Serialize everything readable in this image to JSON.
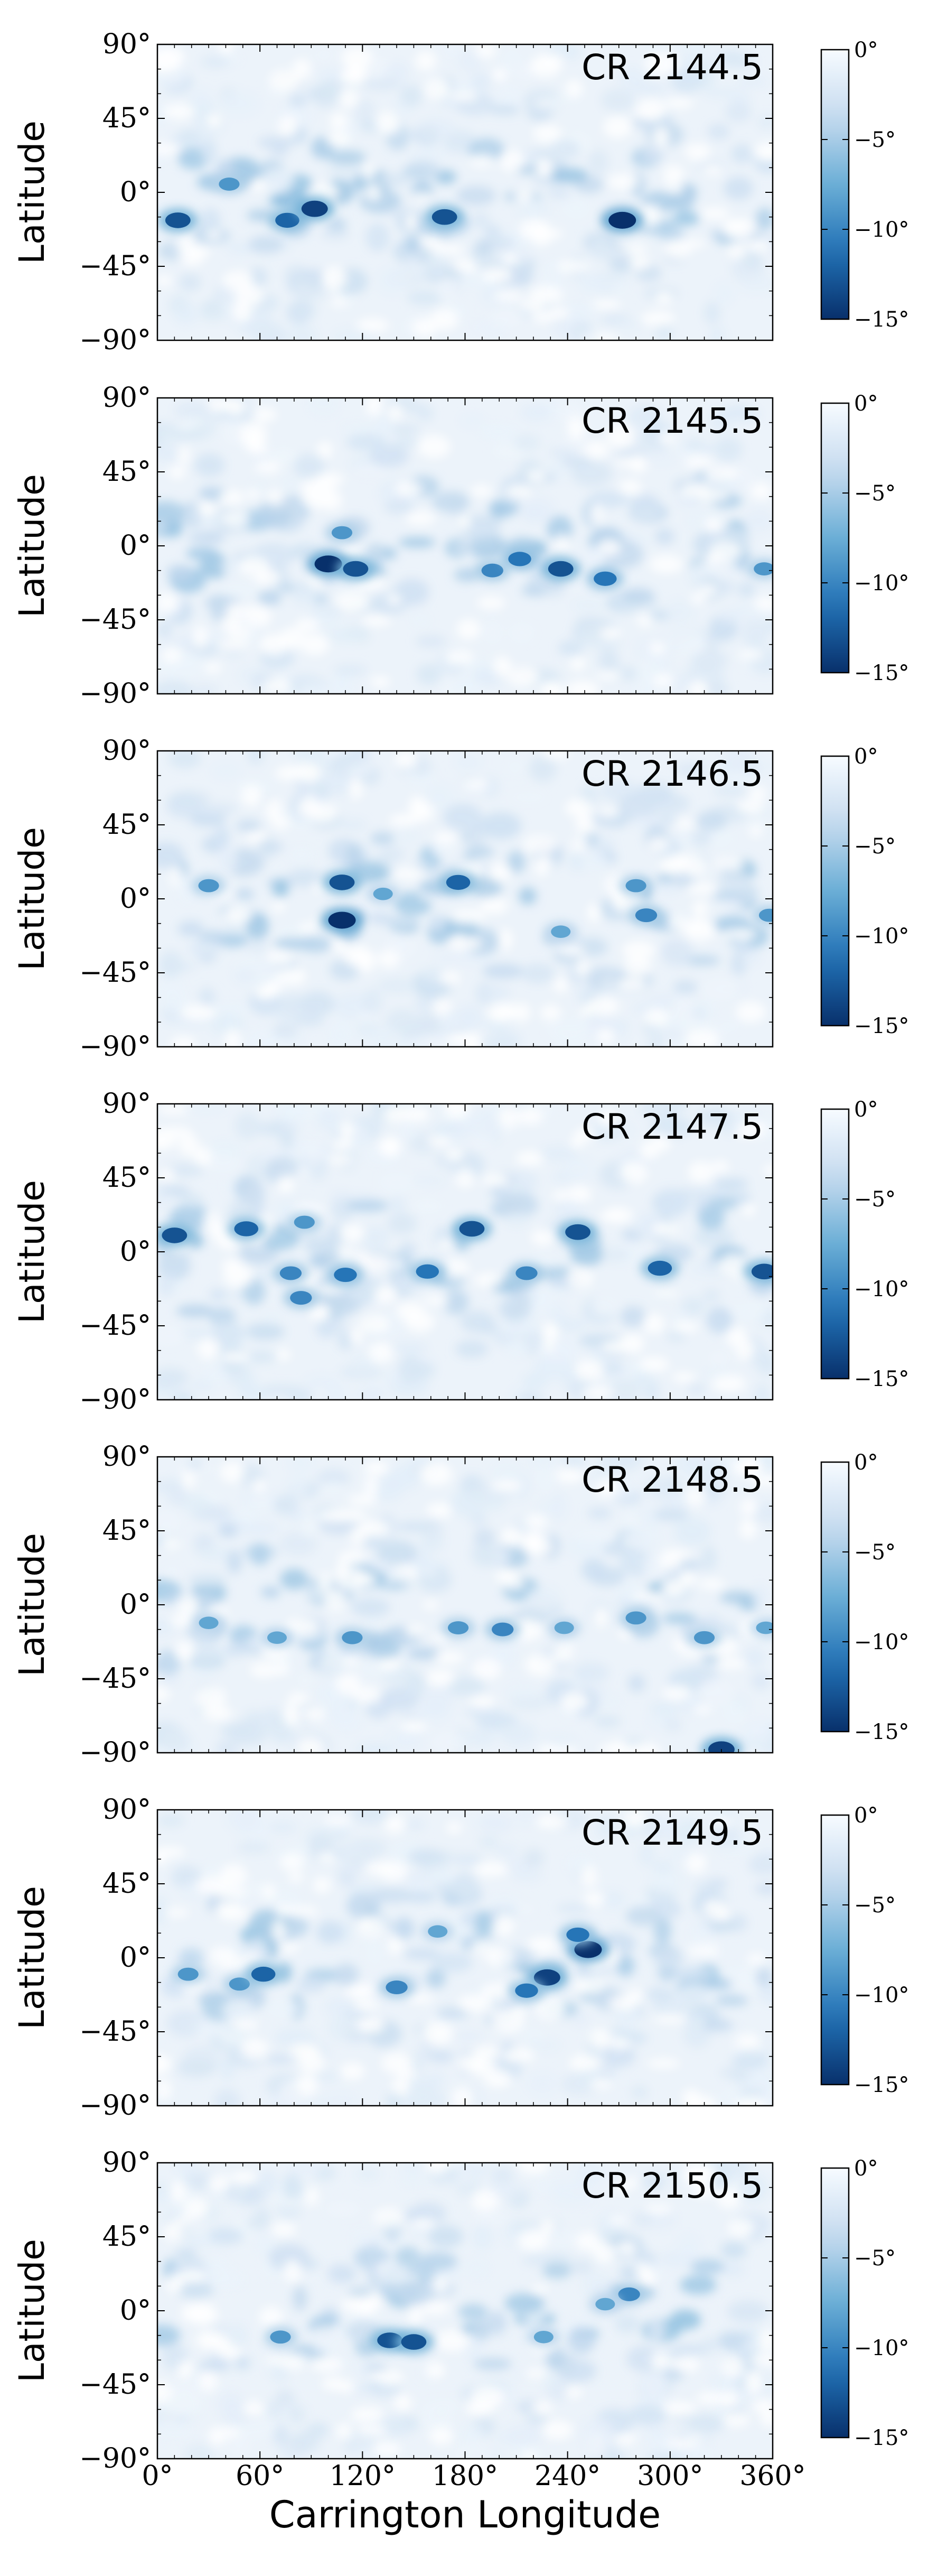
{
  "chart_data": [
    {
      "type": "heatmap",
      "label": "CR 2144.5",
      "ylabel": "Latitude",
      "xlabel": "",
      "xlim": [
        0,
        360
      ],
      "ylim": [
        -90,
        90
      ],
      "x_ticks": [
        0,
        60,
        120,
        180,
        240,
        300,
        360
      ],
      "y_ticks": [
        "90°",
        "45°",
        "0°",
        "−45°",
        "−90°"
      ],
      "colorbar": {
        "range": [
          -15,
          0
        ],
        "ticks": [
          "0°",
          "−5°",
          "−10°",
          "−15°"
        ]
      },
      "features": [
        {
          "lon": 12,
          "lat": -17,
          "value": -13
        },
        {
          "lon": 42,
          "lat": 5,
          "value": -9
        },
        {
          "lon": 76,
          "lat": -17,
          "value": -12
        },
        {
          "lon": 92,
          "lat": -10,
          "value": -14
        },
        {
          "lon": 168,
          "lat": -15,
          "value": -13
        },
        {
          "lon": 272,
          "lat": -17,
          "value": -15
        }
      ]
    },
    {
      "type": "heatmap",
      "label": "CR 2145.5",
      "ylabel": "Latitude",
      "xlabel": "",
      "xlim": [
        0,
        360
      ],
      "ylim": [
        -90,
        90
      ],
      "x_ticks": [
        0,
        60,
        120,
        180,
        240,
        300,
        360
      ],
      "y_ticks": [
        "90°",
        "45°",
        "0°",
        "−45°",
        "−90°"
      ],
      "colorbar": {
        "range": [
          -15,
          0
        ],
        "ticks": [
          "0°",
          "−5°",
          "−10°",
          "−15°"
        ]
      },
      "features": [
        {
          "lon": 100,
          "lat": -11,
          "value": -15
        },
        {
          "lon": 116,
          "lat": -14,
          "value": -13
        },
        {
          "lon": 108,
          "lat": 8,
          "value": -9
        },
        {
          "lon": 196,
          "lat": -15,
          "value": -10
        },
        {
          "lon": 212,
          "lat": -8,
          "value": -11
        },
        {
          "lon": 236,
          "lat": -14,
          "value": -13
        },
        {
          "lon": 262,
          "lat": -20,
          "value": -11
        },
        {
          "lon": 355,
          "lat": -14,
          "value": -9
        }
      ]
    },
    {
      "type": "heatmap",
      "label": "CR 2146.5",
      "ylabel": "Latitude",
      "xlabel": "",
      "xlim": [
        0,
        360
      ],
      "ylim": [
        -90,
        90
      ],
      "x_ticks": [
        0,
        60,
        120,
        180,
        240,
        300,
        360
      ],
      "y_ticks": [
        "90°",
        "45°",
        "0°",
        "−45°",
        "−90°"
      ],
      "colorbar": {
        "range": [
          -15,
          0
        ],
        "ticks": [
          "0°",
          "−5°",
          "−10°",
          "−15°"
        ]
      },
      "features": [
        {
          "lon": 30,
          "lat": 8,
          "value": -9
        },
        {
          "lon": 108,
          "lat": 10,
          "value": -13
        },
        {
          "lon": 108,
          "lat": -13,
          "value": -15
        },
        {
          "lon": 132,
          "lat": 3,
          "value": -8
        },
        {
          "lon": 176,
          "lat": 10,
          "value": -12
        },
        {
          "lon": 236,
          "lat": -20,
          "value": -8
        },
        {
          "lon": 280,
          "lat": 8,
          "value": -9
        },
        {
          "lon": 286,
          "lat": -10,
          "value": -10
        },
        {
          "lon": 358,
          "lat": -10,
          "value": -9
        }
      ]
    },
    {
      "type": "heatmap",
      "label": "CR 2147.5",
      "ylabel": "Latitude",
      "xlabel": "",
      "xlim": [
        0,
        360
      ],
      "ylim": [
        -90,
        90
      ],
      "x_ticks": [
        0,
        60,
        120,
        180,
        240,
        300,
        360
      ],
      "y_ticks": [
        "90°",
        "45°",
        "0°",
        "−45°",
        "−90°"
      ],
      "colorbar": {
        "range": [
          -15,
          0
        ],
        "ticks": [
          "0°",
          "−5°",
          "−10°",
          "−15°"
        ]
      },
      "features": [
        {
          "lon": 10,
          "lat": 10,
          "value": -13
        },
        {
          "lon": 52,
          "lat": 14,
          "value": -12
        },
        {
          "lon": 86,
          "lat": 18,
          "value": -9
        },
        {
          "lon": 78,
          "lat": -13,
          "value": -10
        },
        {
          "lon": 84,
          "lat": -28,
          "value": -10
        },
        {
          "lon": 110,
          "lat": -14,
          "value": -11
        },
        {
          "lon": 158,
          "lat": -12,
          "value": -11
        },
        {
          "lon": 184,
          "lat": 14,
          "value": -13
        },
        {
          "lon": 216,
          "lat": -13,
          "value": -10
        },
        {
          "lon": 246,
          "lat": 12,
          "value": -13
        },
        {
          "lon": 294,
          "lat": -10,
          "value": -12
        },
        {
          "lon": 355,
          "lat": -12,
          "value": -13
        }
      ]
    },
    {
      "type": "heatmap",
      "label": "CR 2148.5",
      "ylabel": "Latitude",
      "xlabel": "",
      "xlim": [
        0,
        360
      ],
      "ylim": [
        -90,
        90
      ],
      "x_ticks": [
        0,
        60,
        120,
        180,
        240,
        300,
        360
      ],
      "y_ticks": [
        "90°",
        "45°",
        "0°",
        "−45°",
        "−90°"
      ],
      "colorbar": {
        "range": [
          -15,
          0
        ],
        "ticks": [
          "0°",
          "−5°",
          "−10°",
          "−15°"
        ]
      },
      "features": [
        {
          "lon": 30,
          "lat": -11,
          "value": -8
        },
        {
          "lon": 70,
          "lat": -20,
          "value": -8
        },
        {
          "lon": 114,
          "lat": -20,
          "value": -9
        },
        {
          "lon": 176,
          "lat": -14,
          "value": -9
        },
        {
          "lon": 202,
          "lat": -15,
          "value": -10
        },
        {
          "lon": 238,
          "lat": -14,
          "value": -8
        },
        {
          "lon": 280,
          "lat": -8,
          "value": -9
        },
        {
          "lon": 320,
          "lat": -20,
          "value": -9
        },
        {
          "lon": 356,
          "lat": -14,
          "value": -8
        },
        {
          "lon": 330,
          "lat": -88,
          "value": -14
        }
      ]
    },
    {
      "type": "heatmap",
      "label": "CR 2149.5",
      "ylabel": "Latitude",
      "xlabel": "",
      "xlim": [
        0,
        360
      ],
      "ylim": [
        -90,
        90
      ],
      "x_ticks": [
        0,
        60,
        120,
        180,
        240,
        300,
        360
      ],
      "y_ticks": [
        "90°",
        "45°",
        "0°",
        "−45°",
        "−90°"
      ],
      "colorbar": {
        "range": [
          -15,
          0
        ],
        "ticks": [
          "0°",
          "−5°",
          "−10°",
          "−15°"
        ]
      },
      "features": [
        {
          "lon": 18,
          "lat": -10,
          "value": -9
        },
        {
          "lon": 48,
          "lat": -16,
          "value": -9
        },
        {
          "lon": 62,
          "lat": -10,
          "value": -12
        },
        {
          "lon": 140,
          "lat": -18,
          "value": -10
        },
        {
          "lon": 164,
          "lat": 16,
          "value": -8
        },
        {
          "lon": 228,
          "lat": -12,
          "value": -14
        },
        {
          "lon": 216,
          "lat": -20,
          "value": -11
        },
        {
          "lon": 252,
          "lat": 5,
          "value": -15
        },
        {
          "lon": 246,
          "lat": 14,
          "value": -11
        }
      ]
    },
    {
      "type": "heatmap",
      "label": "CR 2150.5",
      "ylabel": "Latitude",
      "xlabel": "Carrington Longitude",
      "xlim": [
        0,
        360
      ],
      "ylim": [
        -90,
        90
      ],
      "x_ticks": [
        0,
        60,
        120,
        180,
        240,
        300,
        360
      ],
      "x_tick_labels": [
        "0°",
        "60°",
        "120°",
        "180°",
        "240°",
        "300°",
        "360°"
      ],
      "y_ticks": [
        "90°",
        "45°",
        "0°",
        "−45°",
        "−90°"
      ],
      "colorbar": {
        "range": [
          -15,
          0
        ],
        "ticks": [
          "0°",
          "−5°",
          "−10°",
          "−15°"
        ]
      },
      "features": [
        {
          "lon": 72,
          "lat": -16,
          "value": -9
        },
        {
          "lon": 136,
          "lat": -18,
          "value": -13
        },
        {
          "lon": 150,
          "lat": -19,
          "value": -13
        },
        {
          "lon": 226,
          "lat": -16,
          "value": -8
        },
        {
          "lon": 276,
          "lat": 10,
          "value": -10
        },
        {
          "lon": 262,
          "lat": 4,
          "value": -8
        }
      ]
    }
  ]
}
